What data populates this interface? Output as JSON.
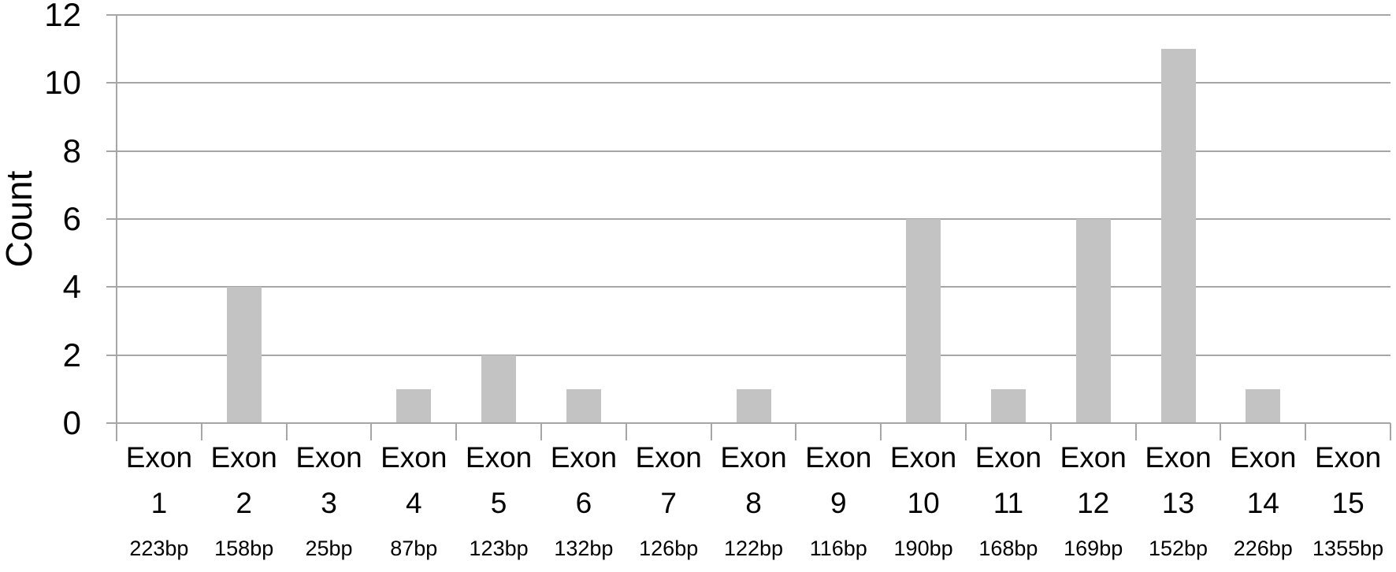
{
  "chart_data": {
    "type": "bar",
    "title": "",
    "ylabel": "Count",
    "xlabel": "",
    "ylim": [
      0,
      12
    ],
    "yticks": [
      0,
      2,
      4,
      6,
      8,
      10,
      12
    ],
    "grid": true,
    "legend_position": "none",
    "categories": [
      "Exon 1",
      "Exon 2",
      "Exon 3",
      "Exon 4",
      "Exon 5",
      "Exon 6",
      "Exon 7",
      "Exon 8",
      "Exon 9",
      "Exon 10",
      "Exon 11",
      "Exon 12",
      "Exon 13",
      "Exon 14",
      "Exon 15"
    ],
    "category_sublabels": [
      "223bp",
      "158bp",
      "25bp",
      "87bp",
      "123bp",
      "132bp",
      "126bp",
      "122bp",
      "116bp",
      "190bp",
      "168bp",
      "169bp",
      "152bp",
      "226bp",
      "1355bp"
    ],
    "values": [
      0,
      4,
      0,
      1,
      2,
      1,
      0,
      1,
      0,
      6,
      1,
      6,
      11,
      1,
      0
    ],
    "colors": {
      "bar": "#c3c3c3",
      "gridline": "#a6a6a6",
      "axis": "#a6a6a6",
      "text": "#000000",
      "background": "#ffffff"
    }
  }
}
